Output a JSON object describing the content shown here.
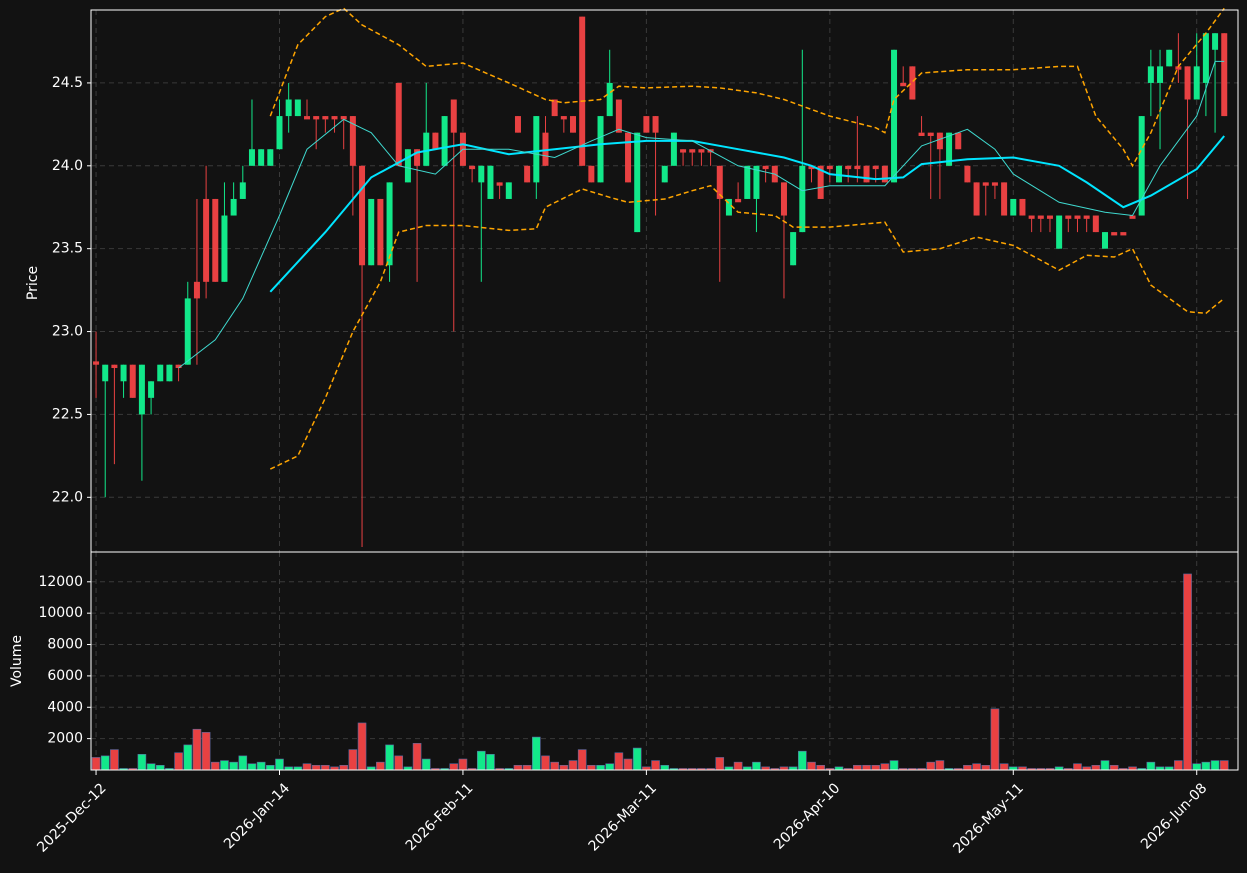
{
  "chart_data": [
    {
      "type": "candlestick",
      "ylabel": "Price",
      "up_color": "#12e88a",
      "down_color": "#e84142",
      "xlim": [
        -0.55,
        124.5
      ],
      "ylim": [
        21.67,
        24.94
      ],
      "grid": true,
      "yticks": [
        {
          "value": 22.0,
          "label": "22.0"
        },
        {
          "value": 22.5,
          "label": "22.5"
        },
        {
          "value": 23.0,
          "label": "23.0"
        },
        {
          "value": 23.5,
          "label": "23.5"
        },
        {
          "value": 24.0,
          "label": "24.0"
        },
        {
          "value": 24.5,
          "label": "24.5"
        }
      ],
      "xticks": [
        {
          "value": 0,
          "label": "2025-Dec-12"
        },
        {
          "value": 20,
          "label": "2026-Jan-14"
        },
        {
          "value": 40,
          "label": "2026-Feb-11"
        },
        {
          "value": 60,
          "label": "2026-Mar-11"
        },
        {
          "value": 80,
          "label": "2026-Apr-10"
        },
        {
          "value": 100,
          "label": "2026-May-11"
        },
        {
          "value": 120,
          "label": "2026-Jun-08"
        }
      ],
      "open": [
        22.82,
        22.7,
        22.8,
        22.7,
        22.8,
        22.5,
        22.6,
        22.7,
        22.7,
        22.8,
        22.8,
        23.3,
        23.8,
        23.8,
        23.3,
        23.7,
        23.8,
        24.0,
        24.0,
        24.0,
        24.1,
        24.3,
        24.3,
        24.3,
        24.3,
        24.3,
        24.3,
        24.3,
        24.3,
        24.0,
        23.4,
        23.8,
        23.4,
        24.5,
        23.9,
        24.1,
        24.0,
        24.2,
        24.0,
        24.4,
        24.2,
        24.0,
        23.9,
        23.8,
        23.9,
        23.8,
        24.3,
        24.0,
        23.9,
        24.2,
        24.4,
        24.3,
        24.3,
        24.9,
        24.0,
        23.9,
        24.3,
        24.4,
        24.2,
        23.6,
        24.3,
        24.3,
        23.9,
        24.0,
        24.1,
        24.1,
        24.1,
        24.1,
        24.0,
        23.7,
        23.8,
        23.8,
        23.8,
        24.0,
        24.0,
        23.9,
        23.4,
        23.6,
        24.0,
        24.0,
        24.0,
        23.9,
        24.0,
        24.0,
        24.0,
        24.0,
        24.0,
        23.9,
        24.5,
        24.6,
        24.2,
        24.2,
        24.2,
        24.0,
        24.2,
        24.0,
        23.9,
        23.9,
        23.9,
        23.9,
        23.7,
        23.8,
        23.7,
        23.7,
        23.7,
        23.5,
        23.7,
        23.7,
        23.7,
        23.7,
        23.5,
        23.6,
        23.6,
        23.7,
        23.7,
        24.5,
        24.5,
        24.6,
        24.6,
        24.6,
        24.4,
        24.5,
        24.7,
        24.8
      ],
      "high": [
        23.0,
        22.8,
        22.8,
        22.8,
        22.8,
        22.8,
        22.7,
        22.8,
        22.8,
        22.8,
        23.3,
        23.8,
        24.0,
        23.8,
        23.9,
        23.9,
        24.0,
        24.4,
        24.1,
        24.1,
        24.4,
        24.5,
        24.4,
        24.4,
        24.3,
        24.3,
        24.3,
        24.3,
        24.3,
        24.0,
        23.8,
        23.8,
        23.9,
        24.5,
        24.1,
        24.1,
        24.5,
        24.2,
        24.3,
        24.4,
        24.2,
        24.0,
        24.0,
        24.0,
        23.9,
        23.9,
        24.3,
        24.0,
        24.3,
        24.3,
        24.4,
        24.3,
        24.3,
        24.9,
        24.0,
        24.3,
        24.7,
        24.4,
        24.2,
        24.2,
        24.3,
        24.3,
        24.0,
        24.2,
        24.1,
        24.1,
        24.1,
        24.1,
        24.0,
        23.8,
        23.9,
        24.0,
        24.0,
        24.0,
        24.0,
        23.9,
        23.6,
        24.7,
        24.0,
        24.0,
        24.0,
        24.0,
        24.0,
        24.3,
        24.0,
        24.0,
        24.0,
        24.7,
        24.6,
        24.6,
        24.3,
        24.2,
        24.2,
        24.2,
        24.2,
        24.0,
        23.9,
        23.9,
        23.9,
        23.9,
        23.8,
        23.8,
        23.7,
        23.7,
        23.7,
        23.7,
        23.7,
        23.7,
        23.7,
        23.7,
        23.6,
        23.6,
        23.6,
        23.7,
        24.3,
        24.7,
        24.7,
        24.7,
        24.8,
        24.6,
        24.8,
        24.8,
        24.8,
        24.8
      ],
      "low": [
        22.6,
        22.0,
        22.2,
        22.6,
        22.6,
        22.1,
        22.5,
        22.7,
        22.7,
        22.7,
        22.8,
        22.8,
        23.2,
        23.3,
        23.3,
        23.7,
        23.8,
        24.0,
        24.0,
        24.0,
        24.1,
        24.2,
        24.3,
        24.3,
        24.1,
        24.2,
        24.2,
        24.1,
        23.7,
        21.7,
        23.4,
        23.4,
        23.3,
        24.0,
        23.9,
        23.3,
        24.0,
        24.1,
        24.0,
        23.0,
        24.0,
        23.9,
        23.3,
        23.8,
        23.8,
        23.8,
        24.2,
        23.9,
        23.8,
        24.0,
        24.3,
        24.2,
        24.2,
        24.0,
        23.9,
        23.9,
        24.3,
        24.2,
        23.9,
        23.6,
        24.2,
        23.7,
        23.9,
        24.0,
        24.0,
        24.0,
        24.0,
        24.0,
        23.3,
        23.7,
        23.8,
        23.8,
        23.6,
        23.9,
        23.9,
        23.2,
        23.4,
        23.6,
        23.9,
        23.8,
        23.9,
        23.9,
        23.9,
        23.9,
        23.9,
        23.9,
        23.9,
        23.9,
        24.5,
        24.4,
        24.2,
        23.8,
        23.8,
        24.0,
        24.1,
        23.9,
        23.7,
        23.7,
        23.8,
        23.7,
        23.7,
        23.7,
        23.6,
        23.6,
        23.6,
        23.5,
        23.6,
        23.6,
        23.6,
        23.6,
        23.5,
        23.6,
        23.6,
        23.7,
        23.7,
        24.3,
        24.1,
        24.6,
        24.5,
        23.8,
        24.4,
        24.3,
        24.2,
        24.3
      ],
      "close": [
        22.8,
        22.8,
        22.78,
        22.8,
        22.6,
        22.8,
        22.7,
        22.8,
        22.8,
        22.78,
        23.2,
        23.2,
        23.3,
        23.3,
        23.7,
        23.8,
        23.9,
        24.1,
        24.1,
        24.1,
        24.3,
        24.4,
        24.4,
        24.28,
        24.28,
        24.28,
        24.28,
        24.28,
        24.0,
        23.4,
        23.8,
        23.4,
        23.9,
        24.0,
        24.1,
        24.0,
        24.2,
        24.1,
        24.3,
        24.2,
        24.0,
        23.98,
        24.0,
        24.0,
        23.88,
        23.9,
        24.2,
        23.9,
        24.3,
        24.0,
        24.3,
        24.28,
        24.2,
        24.0,
        23.9,
        24.3,
        24.5,
        24.2,
        23.9,
        24.2,
        24.2,
        24.2,
        24.0,
        24.2,
        24.08,
        24.08,
        24.08,
        24.08,
        23.8,
        23.8,
        23.78,
        24.0,
        24.0,
        23.98,
        23.9,
        23.7,
        23.6,
        24.0,
        23.98,
        23.8,
        23.98,
        24.0,
        23.98,
        23.98,
        23.9,
        23.98,
        23.9,
        24.7,
        24.48,
        24.4,
        24.18,
        24.18,
        24.1,
        24.2,
        24.1,
        23.9,
        23.7,
        23.88,
        23.88,
        23.7,
        23.8,
        23.7,
        23.68,
        23.68,
        23.68,
        23.7,
        23.68,
        23.68,
        23.68,
        23.6,
        23.6,
        23.58,
        23.58,
        23.68,
        24.3,
        24.6,
        24.6,
        24.7,
        24.58,
        24.4,
        24.6,
        24.8,
        24.8,
        24.3
      ],
      "lines": [
        {
          "color": "#00e5ff",
          "width": 2,
          "dash": false,
          "x": [
            19,
            25,
            30,
            35,
            40,
            45,
            50,
            55,
            60,
            65,
            70,
            75,
            78,
            80,
            85,
            88,
            90,
            95,
            100,
            105,
            108,
            112,
            115,
            120,
            123
          ],
          "values": [
            23.24,
            23.6,
            23.93,
            24.08,
            24.13,
            24.07,
            24.1,
            24.13,
            24.15,
            24.15,
            24.1,
            24.05,
            24.0,
            23.95,
            23.92,
            23.93,
            24.01,
            24.04,
            24.05,
            24.0,
            23.9,
            23.75,
            23.82,
            23.98,
            24.18
          ]
        },
        {
          "color": "#3fd9cf",
          "width": 1,
          "dash": false,
          "x": [
            9,
            13,
            16,
            20,
            23,
            27,
            30,
            33,
            37,
            40,
            45,
            50,
            54,
            57,
            60,
            65,
            70,
            74,
            77,
            80,
            86,
            90,
            95,
            98,
            100,
            105,
            110,
            113,
            116,
            120,
            122,
            123
          ],
          "values": [
            22.78,
            22.95,
            23.2,
            23.7,
            24.1,
            24.28,
            24.2,
            24.0,
            23.95,
            24.1,
            24.1,
            24.05,
            24.15,
            24.22,
            24.17,
            24.15,
            24.0,
            23.95,
            23.85,
            23.88,
            23.88,
            24.12,
            24.22,
            24.1,
            23.95,
            23.78,
            23.72,
            23.7,
            24.0,
            24.3,
            24.63,
            24.63
          ]
        },
        {
          "color": "#ffa500",
          "width": 1.5,
          "dash": true,
          "x": [
            19,
            22,
            25,
            27,
            29,
            33,
            36,
            40,
            45,
            49,
            51,
            55,
            57,
            60,
            65,
            68,
            72,
            75,
            77,
            80,
            85,
            86,
            87,
            90,
            95,
            100,
            105,
            107,
            109,
            112,
            113,
            115,
            118,
            121,
            123
          ],
          "values": [
            24.3,
            24.73,
            24.9,
            24.95,
            24.85,
            24.73,
            24.6,
            24.62,
            24.5,
            24.4,
            24.38,
            24.4,
            24.48,
            24.47,
            24.48,
            24.47,
            24.44,
            24.4,
            24.36,
            24.3,
            24.23,
            24.2,
            24.4,
            24.56,
            24.58,
            24.58,
            24.6,
            24.6,
            24.3,
            24.1,
            24.0,
            24.2,
            24.6,
            24.8,
            24.95
          ]
        },
        {
          "color": "#ffa500",
          "width": 1.5,
          "dash": true,
          "x": [
            19,
            22,
            25,
            28,
            31,
            33,
            36,
            40,
            45,
            48,
            49,
            53,
            56,
            58,
            62,
            65,
            67,
            70,
            74,
            76,
            80,
            86,
            88,
            92,
            96,
            100,
            105,
            108,
            111,
            113,
            115,
            119,
            121,
            123
          ],
          "values": [
            22.17,
            22.25,
            22.6,
            23.0,
            23.3,
            23.6,
            23.64,
            23.64,
            23.61,
            23.62,
            23.75,
            23.86,
            23.81,
            23.78,
            23.8,
            23.85,
            23.88,
            23.72,
            23.7,
            23.63,
            23.63,
            23.66,
            23.48,
            23.5,
            23.57,
            23.52,
            23.37,
            23.46,
            23.45,
            23.5,
            23.28,
            23.12,
            23.11,
            23.2
          ]
        }
      ]
    },
    {
      "type": "bar",
      "ylabel": "Volume",
      "ylim": [
        0,
        13900
      ],
      "yticks": [
        2000,
        4000,
        6000,
        8000,
        10000,
        12000
      ],
      "grid": true,
      "values": [
        800,
        900,
        1300,
        100,
        100,
        1000,
        400,
        300,
        100,
        1100,
        1600,
        2600,
        2400,
        500,
        600,
        500,
        900,
        400,
        500,
        300,
        700,
        200,
        200,
        400,
        300,
        300,
        200,
        300,
        1300,
        3000,
        200,
        500,
        1600,
        900,
        200,
        1700,
        700,
        100,
        100,
        400,
        700,
        100,
        1200,
        1000,
        100,
        100,
        300,
        300,
        2100,
        900,
        500,
        300,
        600,
        1300,
        300,
        300,
        400,
        1100,
        700,
        1400,
        200,
        600,
        300,
        100,
        100,
        100,
        100,
        100,
        800,
        200,
        500,
        200,
        500,
        200,
        100,
        200,
        200,
        1200,
        500,
        300,
        100,
        200,
        100,
        300,
        300,
        300,
        400,
        600,
        100,
        100,
        100,
        500,
        600,
        100,
        100,
        300,
        400,
        300,
        3900,
        400,
        200,
        200,
        100,
        100,
        100,
        200,
        100,
        400,
        200,
        300,
        600,
        300,
        100,
        200,
        100,
        500,
        200,
        200,
        600,
        12500,
        400,
        500,
        600,
        600
      ]
    }
  ]
}
